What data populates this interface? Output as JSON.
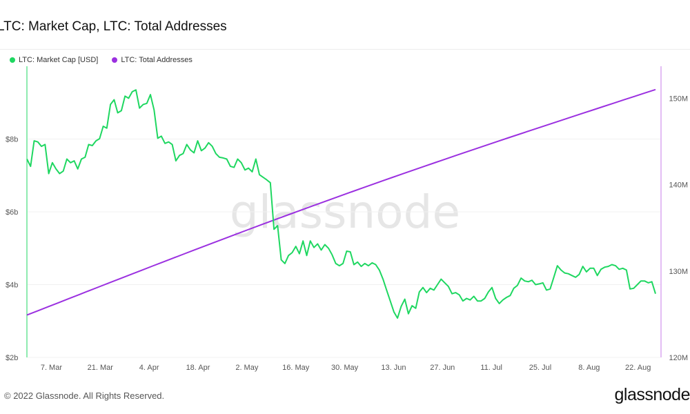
{
  "title": "LTC: Market Cap, LTC: Total Addresses",
  "watermark": "glassnode",
  "footer": {
    "copyright": "© 2022 Glassnode. All Rights Reserved.",
    "logo": "glassnode"
  },
  "colors": {
    "market_cap": "#1ed760",
    "addresses": "#9b30e0"
  },
  "chart_data": {
    "type": "line",
    "x_ticks": [
      "7. Mar",
      "21. Mar",
      "4. Apr",
      "18. Apr",
      "2. May",
      "16. May",
      "30. May",
      "13. Jun",
      "27. Jun",
      "11. Jul",
      "25. Jul",
      "8. Aug",
      "22. Aug"
    ],
    "x_start": "2022-02-28",
    "x_end": "2022-08-27",
    "y_left": {
      "ticks": [
        "$2b",
        "$4b",
        "$6b",
        "$8b"
      ],
      "range": [
        2,
        10
      ],
      "unit": "USD (billions)"
    },
    "y_right": {
      "ticks": [
        "120M",
        "130M",
        "140M",
        "150M"
      ],
      "range": [
        120,
        153.7
      ],
      "unit": "addresses (millions)"
    },
    "grid": true,
    "legend_position": "top-left",
    "series": [
      {
        "name": "LTC: Market Cap [USD]",
        "axis": "left",
        "values": [
          7.45,
          7.25,
          7.95,
          7.92,
          7.8,
          7.85,
          7.05,
          7.35,
          7.18,
          7.05,
          7.12,
          7.45,
          7.35,
          7.4,
          7.18,
          7.45,
          7.5,
          7.85,
          7.82,
          7.95,
          8.01,
          8.35,
          8.3,
          8.95,
          9.08,
          8.72,
          8.78,
          9.18,
          9.12,
          9.3,
          9.35,
          8.85,
          8.95,
          8.98,
          9.22,
          8.8,
          8.02,
          8.08,
          7.88,
          7.92,
          7.85,
          7.4,
          7.55,
          7.6,
          7.85,
          7.7,
          7.62,
          7.95,
          7.68,
          7.75,
          7.9,
          7.8,
          7.6,
          7.5,
          7.48,
          7.45,
          7.25,
          7.22,
          7.45,
          7.35,
          7.15,
          7.2,
          7.1,
          7.45,
          7.02,
          6.95,
          6.88,
          6.8,
          5.52,
          5.62,
          4.68,
          4.58,
          4.8,
          4.88,
          5.05,
          4.85,
          5.2,
          4.8,
          5.2,
          5.02,
          5.12,
          4.95,
          5.1,
          5.0,
          4.82,
          4.58,
          4.52,
          4.58,
          4.92,
          4.9,
          4.55,
          4.62,
          4.5,
          4.58,
          4.52,
          4.6,
          4.55,
          4.4,
          4.15,
          3.85,
          3.55,
          3.25,
          3.08,
          3.4,
          3.6,
          3.2,
          3.42,
          3.35,
          3.8,
          3.92,
          3.78,
          3.9,
          3.85,
          4.0,
          4.15,
          4.05,
          3.95,
          3.75,
          3.78,
          3.72,
          3.55,
          3.62,
          3.58,
          3.68,
          3.55,
          3.55,
          3.62,
          3.8,
          3.92,
          3.62,
          3.48,
          3.58,
          3.65,
          3.7,
          3.9,
          3.98,
          4.18,
          4.1,
          4.08,
          4.12,
          4.0,
          4.02,
          4.05,
          3.85,
          3.88,
          4.2,
          4.52,
          4.4,
          4.32,
          4.3,
          4.25,
          4.2,
          4.28,
          4.5,
          4.35,
          4.45,
          4.45,
          4.25,
          4.42,
          4.48,
          4.5,
          4.55,
          4.52,
          4.42,
          4.45,
          4.4,
          3.88,
          3.9,
          4.0,
          4.1,
          4.1,
          4.05,
          4.08,
          3.75
        ]
      },
      {
        "name": "LTC: Total Addresses",
        "axis": "right",
        "start": 124.9,
        "end": 151.0
      }
    ]
  }
}
